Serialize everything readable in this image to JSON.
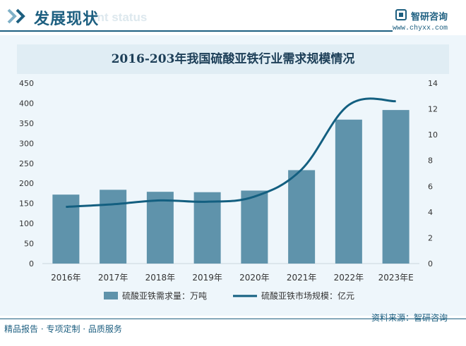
{
  "header": {
    "section_title": "发展现状",
    "section_subtitle": "ent status",
    "logo_text": "智研咨询",
    "site_url": "www.chyxx.com"
  },
  "colors": {
    "accent": "#1d5f80",
    "bar": "#5f93ab",
    "line": "#135f80",
    "panel": "#eef6fb"
  },
  "chart_data": {
    "type": "bar",
    "title": "2016-203年我国硫酸亚铁行业需求规模情况",
    "categories": [
      "2016年",
      "2017年",
      "2018年",
      "2019年",
      "2020年",
      "2021年",
      "2022年",
      "2023年E"
    ],
    "series": [
      {
        "name": "硫酸亚铁需求量：万吨",
        "type": "bar",
        "axis": "left",
        "values": [
          172,
          184,
          179,
          178,
          182,
          233,
          359,
          383
        ]
      },
      {
        "name": "硫酸亚铁市场规模：亿元",
        "type": "line",
        "axis": "right",
        "values": [
          4.4,
          4.6,
          4.9,
          4.8,
          5.2,
          7.3,
          12.3,
          12.6
        ]
      }
    ],
    "y_left": {
      "min": 0,
      "max": 450,
      "ticks": [
        "0",
        "50",
        "100",
        "150",
        "200",
        "250",
        "300",
        "350",
        "400",
        "450"
      ]
    },
    "y_right": {
      "min": 0,
      "max": 14,
      "ticks": [
        "0",
        "2",
        "4",
        "6",
        "8",
        "10",
        "12",
        "14"
      ]
    },
    "grid": false,
    "legend_position": "bottom"
  },
  "footer": {
    "left_text": "精品报告 · 专项定制 · 品质服务",
    "source_text": "资料来源：智研咨询"
  }
}
